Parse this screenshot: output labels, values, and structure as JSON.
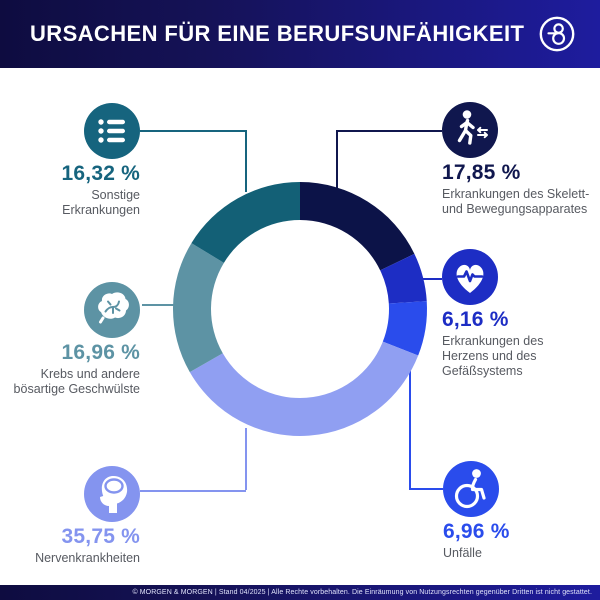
{
  "header": {
    "title": "URSACHEN FÜR EINE BERUFSUNFÄHIGKEIT",
    "logo": "morgen-und-morgen-ampersand"
  },
  "chart_data": {
    "type": "pie",
    "subtype": "donut",
    "title": "Ursachen für eine Berufsunfähigkeit",
    "start_angle_deg": 0,
    "direction": "clockwise",
    "center": [
      300,
      309
    ],
    "outer_radius": 127,
    "inner_radius": 89,
    "legend_position": "callouts-around-donut",
    "segments": [
      {
        "key": "skelett",
        "value": 17.85,
        "display": "17,85 %",
        "label": "Erkrankungen des Skelett-\nund Bewegungsapparates",
        "color": "#0c1348",
        "accent": "#10174e",
        "icon": "walking-person-icon"
      },
      {
        "key": "herz",
        "value": 6.16,
        "display": "6,16 %",
        "label": "Erkrankungen des\nHerzens und des\nGefäßsystems",
        "color": "#1d2dc4",
        "accent": "#1d2dc4",
        "icon": "heart-pulse-icon"
      },
      {
        "key": "unfaelle",
        "value": 6.96,
        "display": "6,96 %",
        "label": "Unfälle",
        "color": "#2a4cec",
        "accent": "#2a4cec",
        "icon": "wheelchair-icon"
      },
      {
        "key": "nerven",
        "value": 35.75,
        "display": "35,75 %",
        "label": "Nervenkrankheiten",
        "color": "#909ff2",
        "accent": "#8494ef",
        "icon": "head-profile-icon"
      },
      {
        "key": "krebs",
        "value": 16.96,
        "display": "16,96 %",
        "label": "Krebs und andere\nbösartige Geschwülste",
        "color": "#5d93a4",
        "accent": "#5d93a4",
        "icon": "brain-icon"
      },
      {
        "key": "sonstige",
        "value": 16.32,
        "display": "16,32 %",
        "label": "Sonstige\nErkrankungen",
        "color": "#136076",
        "accent": "#16647e",
        "icon": "bullet-list-icon"
      }
    ]
  },
  "footer": {
    "text": "© MORGEN & MORGEN | Stand 04/2025 | Alle Rechte vorbehalten. Die Einräumung von Nutzungsrechten gegenüber Dritten ist nicht gestattet."
  }
}
